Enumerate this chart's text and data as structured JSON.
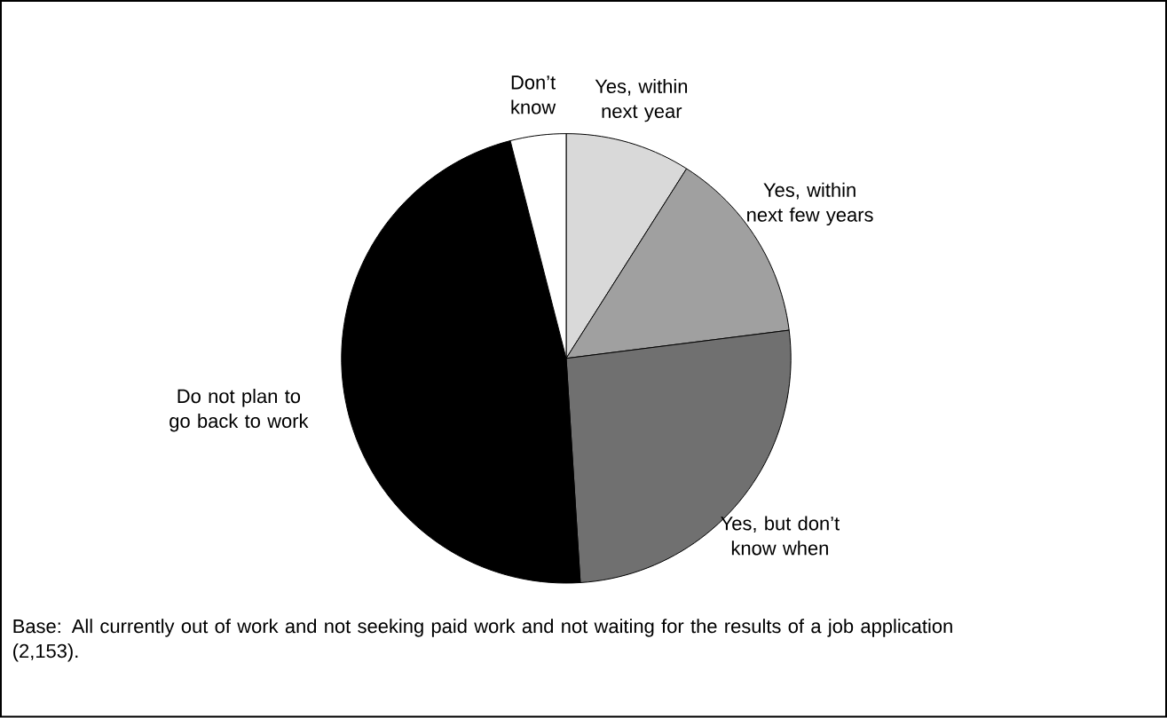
{
  "chart_data": {
    "type": "pie",
    "categories": [
      "Yes, within next year",
      "Yes, within next few years",
      "Yes, but don’t know when",
      "Do not plan to go back to work",
      "Don’t know"
    ],
    "values": [
      9,
      14,
      26,
      47,
      4
    ],
    "colors": [
      "#d9d9d9",
      "#a0a0a0",
      "#707070",
      "#000000",
      "#ffffff"
    ],
    "annotations": [
      "Base:  All currently out of work and not seeking paid work and not waiting for the results of a job application (2,153)."
    ]
  }
}
